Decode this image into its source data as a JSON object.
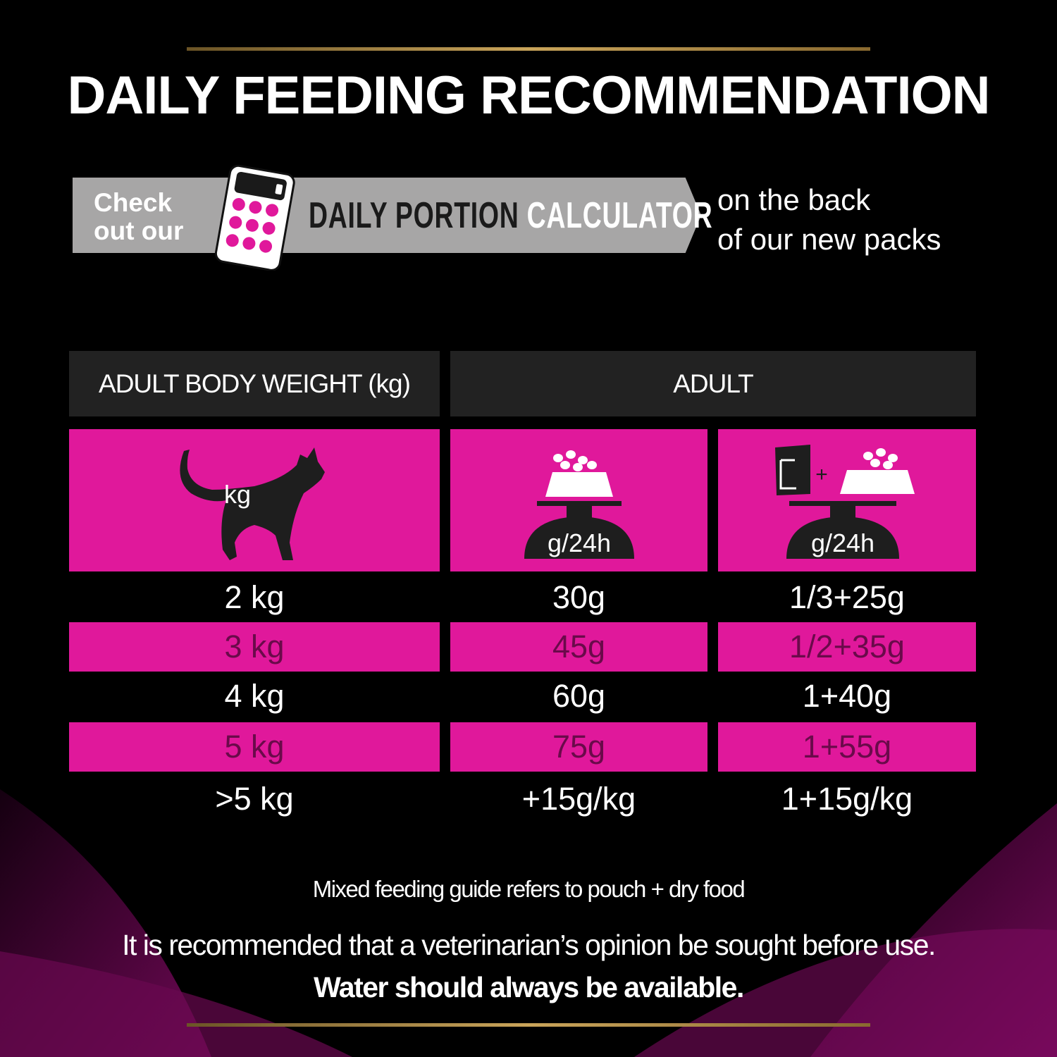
{
  "title": "DAILY FEEDING RECOMMENDATION",
  "banner": {
    "check": "Check",
    "out_our": "out our",
    "daily_portion": "DAILY PORTION",
    "calculator": "CALCULATOR",
    "back_line1": "on the back",
    "back_line2": "of our new packs"
  },
  "colors": {
    "accent": "#e0189b",
    "header_bg": "#222222",
    "banner_bg": "#a7a6a6",
    "gold": "#c9a45a"
  },
  "table": {
    "headers": {
      "weight": "ADULT BODY WEIGHT (kg)",
      "adult": "ADULT"
    },
    "icons": {
      "weight": "kg",
      "dry": "g/24h",
      "mixed": "g/24h",
      "mixed_plus": "+"
    },
    "rows": [
      {
        "weight": "2 kg",
        "dry": "30g",
        "mixed": "1/3+25g"
      },
      {
        "weight": "3 kg",
        "dry": "45g",
        "mixed": "1/2+35g"
      },
      {
        "weight": "4 kg",
        "dry": "60g",
        "mixed": "1+40g"
      },
      {
        "weight": "5 kg",
        "dry": "75g",
        "mixed": "1+55g"
      },
      {
        "weight": ">5 kg",
        "dry": "+15g/kg",
        "mixed": "1+15g/kg"
      }
    ]
  },
  "note": "Mixed feeding guide refers to pouch + dry food",
  "disclaimer1": "It is recommended that a veterinarian’s opinion be sought before use.",
  "disclaimer2": "Water should always be available."
}
